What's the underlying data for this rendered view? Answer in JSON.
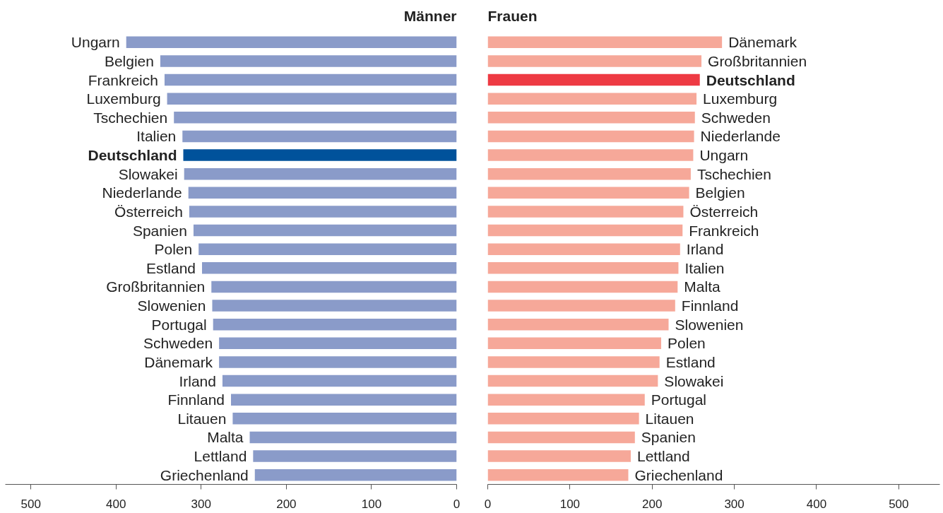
{
  "chart_data": [
    {
      "type": "bar",
      "orientation": "horizontal",
      "title": "Männer",
      "categories": [
        "Ungarn",
        "Belgien",
        "Frankreich",
        "Luxemburg",
        "Tschechien",
        "Italien",
        "Deutschland",
        "Slowakei",
        "Niederlande",
        "Österreich",
        "Spanien",
        "Polen",
        "Estland",
        "Großbritannien",
        "Slowenien",
        "Portugal",
        "Schweden",
        "Dänemark",
        "Irland",
        "Finnland",
        "Litauen",
        "Malta",
        "Lettland",
        "Griechenland"
      ],
      "values": [
        388,
        348,
        343,
        340,
        332,
        322,
        321,
        320,
        315,
        314,
        309,
        303,
        299,
        288,
        287,
        286,
        279,
        279,
        275,
        265,
        263,
        243,
        239,
        237
      ],
      "color": "#8a9bc9",
      "colors": [
        "#8a9bc9",
        "#8a9bc9",
        "#8a9bc9",
        "#8a9bc9",
        "#8a9bc9",
        "#8a9bc9",
        "#00529b",
        "#8a9bc9",
        "#8a9bc9",
        "#8a9bc9",
        "#8a9bc9",
        "#8a9bc9",
        "#8a9bc9",
        "#8a9bc9",
        "#8a9bc9",
        "#8a9bc9",
        "#8a9bc9",
        "#8a9bc9",
        "#8a9bc9",
        "#8a9bc9",
        "#8a9bc9",
        "#8a9bc9",
        "#8a9bc9",
        "#8a9bc9"
      ],
      "xlim": [
        530,
        0
      ],
      "xticks": [
        500,
        400,
        300,
        200,
        100,
        0
      ],
      "grid": false
    },
    {
      "type": "bar",
      "orientation": "horizontal",
      "title": "Frauen",
      "categories": [
        "Dänemark",
        "Großbritannien",
        "Deutschland",
        "Luxemburg",
        "Schweden",
        "Niederlande",
        "Ungarn",
        "Tschechien",
        "Belgien",
        "Österreich",
        "Frankreich",
        "Irland",
        "Italien",
        "Malta",
        "Finnland",
        "Slowenien",
        "Polen",
        "Estland",
        "Slowakei",
        "Portugal",
        "Litauen",
        "Spanien",
        "Lettland",
        "Griechenland"
      ],
      "values": [
        285,
        260,
        258,
        254,
        252,
        251,
        250,
        247,
        245,
        238,
        237,
        234,
        232,
        231,
        228,
        220,
        211,
        209,
        207,
        191,
        184,
        179,
        174,
        171
      ],
      "color": "#f6a899",
      "colors": [
        "#f6a899",
        "#f6a899",
        "#ee3a43",
        "#f6a899",
        "#f6a899",
        "#f6a899",
        "#f6a899",
        "#f6a899",
        "#f6a899",
        "#f6a899",
        "#f6a899",
        "#f6a899",
        "#f6a899",
        "#f6a899",
        "#f6a899",
        "#f6a899",
        "#f6a899",
        "#f6a899",
        "#f6a899",
        "#f6a899",
        "#f6a899",
        "#f6a899",
        "#f6a899",
        "#f6a899"
      ],
      "xlim": [
        0,
        550
      ],
      "xticks": [
        0,
        100,
        200,
        300,
        400,
        500
      ],
      "grid": false
    }
  ]
}
